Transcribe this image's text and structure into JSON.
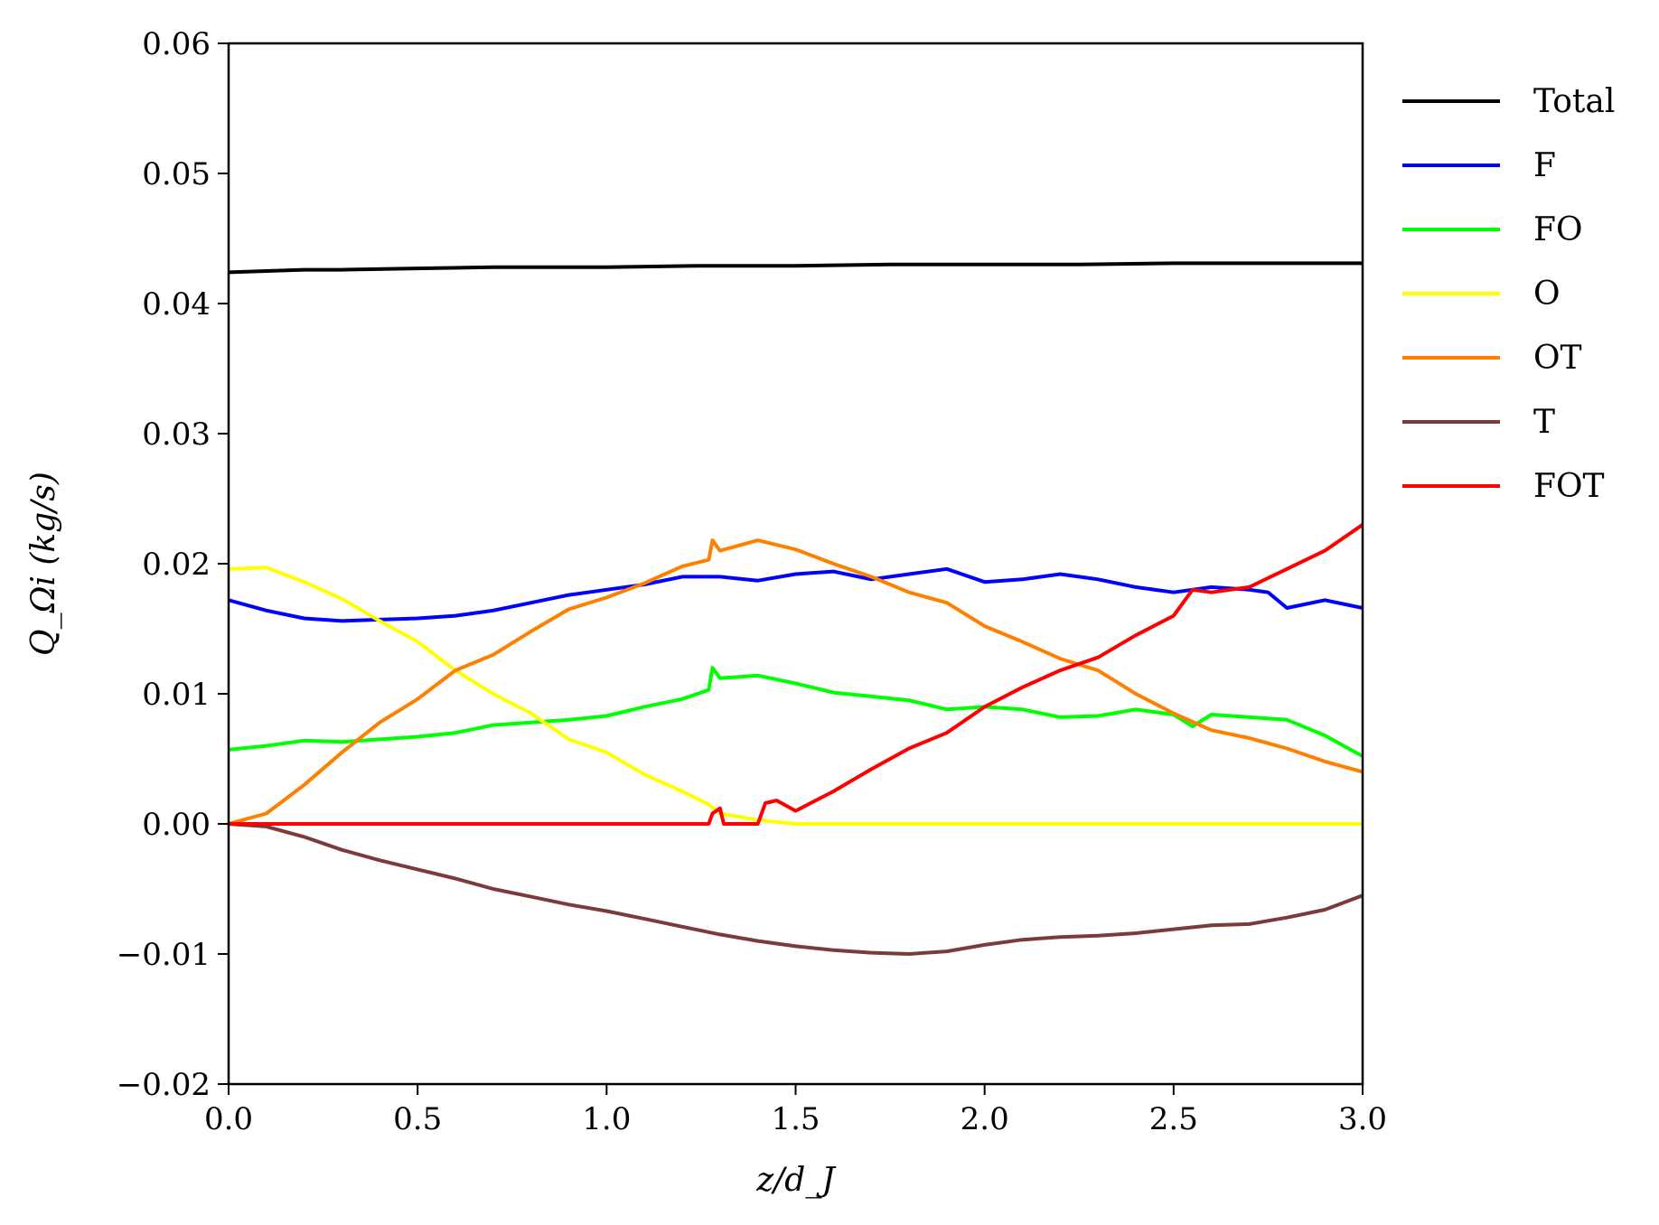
{
  "chart_data": {
    "type": "line",
    "xlabel": "z/d_J",
    "ylabel": "Q_Ωi (kg/s)",
    "xlim": [
      0.0,
      3.0
    ],
    "ylim": [
      -0.02,
      0.06
    ],
    "xticks": [
      0.0,
      0.5,
      1.0,
      1.5,
      2.0,
      2.5,
      3.0
    ],
    "xtick_labels": [
      "0.0",
      "0.5",
      "1.0",
      "1.5",
      "2.0",
      "2.5",
      "3.0"
    ],
    "yticks": [
      -0.02,
      -0.01,
      0.0,
      0.01,
      0.02,
      0.03,
      0.04,
      0.05,
      0.06
    ],
    "ytick_labels": [
      "−0.02",
      "−0.01",
      "0.00",
      "0.01",
      "0.02",
      "0.03",
      "0.04",
      "0.05",
      "0.06"
    ],
    "legend_position": "outside-right",
    "grid": false,
    "series": [
      {
        "name": "Total",
        "color": "#000000",
        "x": [
          0.0,
          0.1,
          0.2,
          0.3,
          0.5,
          0.7,
          1.0,
          1.25,
          1.5,
          1.75,
          2.0,
          2.25,
          2.5,
          2.75,
          3.0
        ],
        "y": [
          0.0424,
          0.0425,
          0.0426,
          0.0426,
          0.0427,
          0.0428,
          0.0428,
          0.0429,
          0.0429,
          0.043,
          0.043,
          0.043,
          0.0431,
          0.0431,
          0.0431
        ]
      },
      {
        "name": "F",
        "color": "#0000ff",
        "x": [
          0.0,
          0.1,
          0.2,
          0.3,
          0.4,
          0.5,
          0.6,
          0.7,
          0.8,
          0.9,
          1.0,
          1.1,
          1.2,
          1.3,
          1.4,
          1.5,
          1.6,
          1.7,
          1.8,
          1.9,
          2.0,
          2.1,
          2.2,
          2.3,
          2.4,
          2.5,
          2.6,
          2.7,
          2.75,
          2.8,
          2.9,
          3.0
        ],
        "y": [
          0.0172,
          0.0164,
          0.0158,
          0.0156,
          0.0157,
          0.0158,
          0.016,
          0.0164,
          0.017,
          0.0176,
          0.018,
          0.0184,
          0.019,
          0.019,
          0.0187,
          0.0192,
          0.0194,
          0.0188,
          0.0192,
          0.0196,
          0.0186,
          0.0188,
          0.0192,
          0.0188,
          0.0182,
          0.0178,
          0.0182,
          0.018,
          0.0178,
          0.0166,
          0.0172,
          0.0166
        ]
      },
      {
        "name": "FO",
        "color": "#00ff00",
        "x": [
          0.0,
          0.1,
          0.2,
          0.3,
          0.4,
          0.5,
          0.6,
          0.7,
          0.8,
          0.9,
          1.0,
          1.1,
          1.2,
          1.27,
          1.28,
          1.3,
          1.4,
          1.5,
          1.6,
          1.7,
          1.8,
          1.9,
          2.0,
          2.1,
          2.2,
          2.3,
          2.4,
          2.5,
          2.55,
          2.6,
          2.7,
          2.8,
          2.9,
          3.0
        ],
        "y": [
          0.0057,
          0.006,
          0.0064,
          0.0063,
          0.0065,
          0.0067,
          0.007,
          0.0076,
          0.0078,
          0.008,
          0.0083,
          0.009,
          0.0096,
          0.0103,
          0.012,
          0.0112,
          0.0114,
          0.0108,
          0.0101,
          0.0098,
          0.0095,
          0.0088,
          0.009,
          0.0088,
          0.0082,
          0.0083,
          0.0088,
          0.0084,
          0.0075,
          0.0084,
          0.0082,
          0.008,
          0.0068,
          0.0052
        ]
      },
      {
        "name": "O",
        "color": "#ffff00",
        "x": [
          0.0,
          0.1,
          0.2,
          0.3,
          0.4,
          0.5,
          0.6,
          0.7,
          0.8,
          0.9,
          1.0,
          1.1,
          1.2,
          1.27,
          1.3,
          1.4,
          1.5,
          2.0,
          2.5,
          3.0
        ],
        "y": [
          0.0196,
          0.0197,
          0.0186,
          0.0173,
          0.0156,
          0.014,
          0.0118,
          0.01,
          0.0085,
          0.0065,
          0.0055,
          0.0038,
          0.0025,
          0.0015,
          0.0008,
          0.0003,
          0.0,
          0.0,
          0.0,
          0.0
        ]
      },
      {
        "name": "OT",
        "color": "#ff8000",
        "x": [
          0.0,
          0.1,
          0.2,
          0.3,
          0.4,
          0.5,
          0.6,
          0.7,
          0.8,
          0.9,
          1.0,
          1.1,
          1.2,
          1.27,
          1.28,
          1.3,
          1.4,
          1.5,
          1.6,
          1.7,
          1.8,
          1.9,
          2.0,
          2.1,
          2.2,
          2.3,
          2.4,
          2.5,
          2.6,
          2.7,
          2.8,
          2.9,
          3.0
        ],
        "y": [
          0.0,
          0.0008,
          0.003,
          0.0055,
          0.0078,
          0.0096,
          0.0118,
          0.013,
          0.0148,
          0.0165,
          0.0174,
          0.0185,
          0.0198,
          0.0203,
          0.0218,
          0.021,
          0.0218,
          0.0211,
          0.02,
          0.019,
          0.0178,
          0.017,
          0.0152,
          0.014,
          0.0127,
          0.0118,
          0.01,
          0.0085,
          0.0072,
          0.0066,
          0.0058,
          0.0048,
          0.004
        ]
      },
      {
        "name": "T",
        "color": "#7b3b3b",
        "x": [
          0.0,
          0.1,
          0.2,
          0.3,
          0.4,
          0.5,
          0.6,
          0.7,
          0.8,
          0.9,
          1.0,
          1.1,
          1.2,
          1.3,
          1.4,
          1.5,
          1.6,
          1.7,
          1.8,
          1.9,
          2.0,
          2.1,
          2.2,
          2.3,
          2.4,
          2.5,
          2.6,
          2.7,
          2.8,
          2.9,
          3.0
        ],
        "y": [
          0.0,
          -0.0002,
          -0.001,
          -0.002,
          -0.0028,
          -0.0035,
          -0.0042,
          -0.005,
          -0.0056,
          -0.0062,
          -0.0067,
          -0.0073,
          -0.0079,
          -0.0085,
          -0.009,
          -0.0094,
          -0.0097,
          -0.0099,
          -0.01,
          -0.0098,
          -0.0093,
          -0.0089,
          -0.0087,
          -0.0086,
          -0.0084,
          -0.0081,
          -0.0078,
          -0.0077,
          -0.0072,
          -0.0066,
          -0.0055
        ]
      },
      {
        "name": "FOT",
        "color": "#ff0000",
        "x": [
          0.0,
          0.5,
          1.0,
          1.27,
          1.28,
          1.3,
          1.31,
          1.4,
          1.42,
          1.45,
          1.5,
          1.6,
          1.7,
          1.8,
          1.9,
          2.0,
          2.1,
          2.2,
          2.3,
          2.4,
          2.5,
          2.55,
          2.6,
          2.7,
          2.8,
          2.9,
          3.0
        ],
        "y": [
          0.0,
          0.0,
          0.0,
          0.0,
          0.0008,
          0.0012,
          0.0,
          0.0,
          0.0016,
          0.0018,
          0.001,
          0.0025,
          0.0042,
          0.0058,
          0.007,
          0.009,
          0.0105,
          0.0118,
          0.0128,
          0.0145,
          0.016,
          0.018,
          0.0178,
          0.0182,
          0.0196,
          0.021,
          0.023
        ]
      }
    ]
  }
}
